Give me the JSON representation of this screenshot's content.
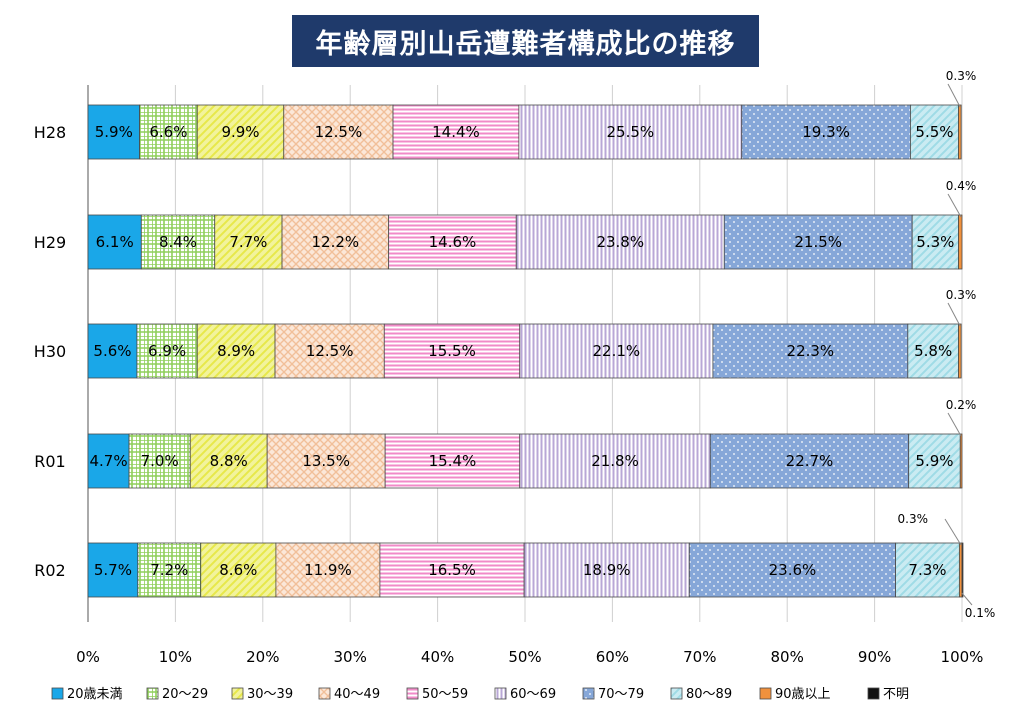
{
  "chart_data": {
    "type": "bar",
    "orientation": "horizontal",
    "stacked": "percent",
    "title": "年齢層別山岳遭難者構成比の推移",
    "categories": [
      "H28",
      "H29",
      "H30",
      "R01",
      "R02"
    ],
    "x_ticks": [
      "0%",
      "10%",
      "20%",
      "30%",
      "40%",
      "50%",
      "60%",
      "70%",
      "80%",
      "90%",
      "100%"
    ],
    "xlim": [
      0,
      100
    ],
    "grid": true,
    "legend_position": "bottom",
    "series": [
      {
        "name": "20歳未満",
        "color": "#1aa7e8",
        "pattern": "solid",
        "values": [
          5.9,
          6.1,
          5.6,
          4.7,
          5.7
        ],
        "labels": [
          "5.9%",
          "6.1%",
          "5.6%",
          "4.7%",
          "5.7%"
        ]
      },
      {
        "name": "20～29",
        "color": "#8fcf5a",
        "pattern": "grid",
        "values": [
          6.6,
          8.4,
          6.9,
          7.0,
          7.2
        ],
        "labels": [
          "6.6%",
          "8.4%",
          "6.9%",
          "7.0%",
          "7.2%"
        ]
      },
      {
        "name": "30～39",
        "color": "#e7e84a",
        "pattern": "diagonal",
        "values": [
          9.9,
          7.7,
          8.9,
          8.8,
          8.6
        ],
        "labels": [
          "9.9%",
          "7.7%",
          "8.9%",
          "8.8%",
          "8.6%"
        ]
      },
      {
        "name": "40～49",
        "color": "#f1bf99",
        "pattern": "diamond",
        "values": [
          12.5,
          12.2,
          12.5,
          13.5,
          11.9
        ],
        "labels": [
          "12.5%",
          "12.2%",
          "12.5%",
          "13.5%",
          "11.9%"
        ]
      },
      {
        "name": "50～59",
        "color": "#f18ac8",
        "pattern": "horizontal",
        "values": [
          14.4,
          14.6,
          15.5,
          15.4,
          16.5
        ],
        "labels": [
          "14.4%",
          "14.6%",
          "15.5%",
          "15.4%",
          "16.5%"
        ]
      },
      {
        "name": "60～69",
        "color": "#b8a7d6",
        "pattern": "vertical",
        "values": [
          25.5,
          23.8,
          22.1,
          21.8,
          18.9
        ],
        "labels": [
          "25.5%",
          "23.8%",
          "22.1%",
          "21.8%",
          "18.9%"
        ]
      },
      {
        "name": "70～79",
        "color": "#86a7d8",
        "pattern": "dots",
        "values": [
          19.3,
          21.5,
          22.3,
          22.7,
          23.6
        ],
        "labels": [
          "19.3%",
          "21.5%",
          "22.3%",
          "22.7%",
          "23.6%"
        ]
      },
      {
        "name": "80～89",
        "color": "#9fdbe6",
        "pattern": "diagonal",
        "values": [
          5.5,
          5.3,
          5.8,
          5.9,
          7.3
        ],
        "labels": [
          "5.5%",
          "5.3%",
          "5.8%",
          "5.9%",
          "7.3%"
        ]
      },
      {
        "name": "90歳以上",
        "color": "#f0913d",
        "pattern": "solid",
        "values": [
          0.3,
          0.4,
          0.3,
          0.2,
          0.3
        ],
        "labels": [
          "0.3%",
          "0.4%",
          "0.3%",
          "0.2%",
          "0.3%"
        ]
      },
      {
        "name": "不明",
        "color": "#111111",
        "pattern": "solid",
        "values": [
          0,
          0,
          0,
          0,
          0.1
        ],
        "labels": [
          "",
          "",
          "",
          "",
          "0.1%"
        ]
      }
    ]
  }
}
